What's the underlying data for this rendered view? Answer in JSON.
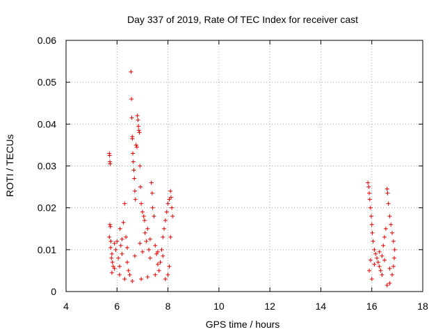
{
  "chart_data": {
    "type": "scatter",
    "title": "Day 337 of 2019, Rate Of TEC Index for receiver cast",
    "xlabel": "GPS time / hours",
    "ylabel": "ROTI / TECUs",
    "xlim": [
      4,
      18
    ],
    "ylim": [
      0,
      0.06
    ],
    "x_ticks": [
      4,
      6,
      8,
      10,
      12,
      14,
      16,
      18
    ],
    "y_ticks": [
      0,
      0.01,
      0.02,
      0.03,
      0.04,
      0.05,
      0.06
    ],
    "x_tick_labels": [
      "4",
      "6",
      "8",
      "10",
      "12",
      "14",
      "16",
      "18"
    ],
    "y_tick_labels": [
      "0",
      "0.01",
      "0.02",
      "0.03",
      "0.04",
      "0.05",
      "0.06"
    ],
    "grid": true,
    "marker": "plus",
    "color": "#e00000",
    "series": [
      {
        "name": "ROTI",
        "points": [
          [
            5.7,
            0.033
          ],
          [
            5.71,
            0.0325
          ],
          [
            5.72,
            0.031
          ],
          [
            5.73,
            0.0305
          ],
          [
            5.72,
            0.016
          ],
          [
            5.74,
            0.0155
          ],
          [
            5.7,
            0.013
          ],
          [
            5.76,
            0.012
          ],
          [
            5.75,
            0.0105
          ],
          [
            5.8,
            0.009
          ],
          [
            5.78,
            0.008
          ],
          [
            5.82,
            0.007
          ],
          [
            5.85,
            0.006
          ],
          [
            5.9,
            0.0055
          ],
          [
            5.95,
            0.01
          ],
          [
            6.0,
            0.012
          ],
          [
            6.05,
            0.008
          ],
          [
            6.1,
            0.006
          ],
          [
            6.12,
            0.015
          ],
          [
            6.15,
            0.011
          ],
          [
            6.2,
            0.009
          ],
          [
            6.25,
            0.0165
          ],
          [
            6.3,
            0.021
          ],
          [
            6.35,
            0.013
          ],
          [
            6.4,
            0.007
          ],
          [
            6.45,
            0.005
          ],
          [
            6.5,
            0.004
          ],
          [
            6.55,
            0.0525
          ],
          [
            6.57,
            0.046
          ],
          [
            6.58,
            0.0415
          ],
          [
            6.6,
            0.037
          ],
          [
            6.6,
            0.0365
          ],
          [
            6.62,
            0.033
          ],
          [
            6.64,
            0.031
          ],
          [
            6.66,
            0.029
          ],
          [
            6.68,
            0.027
          ],
          [
            6.7,
            0.024
          ],
          [
            6.72,
            0.022
          ],
          [
            6.75,
            0.035
          ],
          [
            6.78,
            0.0345
          ],
          [
            6.8,
            0.042
          ],
          [
            6.82,
            0.041
          ],
          [
            6.84,
            0.0395
          ],
          [
            6.86,
            0.0385
          ],
          [
            6.88,
            0.038
          ],
          [
            6.9,
            0.03
          ],
          [
            6.92,
            0.025
          ],
          [
            6.95,
            0.021
          ],
          [
            7.0,
            0.019
          ],
          [
            7.05,
            0.018
          ],
          [
            7.08,
            0.017
          ],
          [
            7.1,
            0.014
          ],
          [
            7.15,
            0.012
          ],
          [
            7.2,
            0.015
          ],
          [
            7.25,
            0.01
          ],
          [
            7.3,
            0.008
          ],
          [
            7.35,
            0.026
          ],
          [
            7.38,
            0.0235
          ],
          [
            7.4,
            0.02
          ],
          [
            7.45,
            0.018
          ],
          [
            7.5,
            0.011
          ],
          [
            7.55,
            0.009
          ],
          [
            7.6,
            0.0065
          ],
          [
            7.65,
            0.005
          ],
          [
            7.7,
            0.007
          ],
          [
            7.75,
            0.01
          ],
          [
            7.8,
            0.013
          ],
          [
            7.85,
            0.015
          ],
          [
            7.9,
            0.017
          ],
          [
            7.95,
            0.019
          ],
          [
            8.0,
            0.021
          ],
          [
            8.05,
            0.022
          ],
          [
            8.1,
            0.024
          ],
          [
            8.12,
            0.0225
          ],
          [
            8.15,
            0.02
          ],
          [
            8.18,
            0.018
          ],
          [
            8.1,
            0.013
          ],
          [
            8.05,
            0.006
          ],
          [
            8.0,
            0.004
          ],
          [
            7.9,
            0.003
          ],
          [
            6.3,
            0.003
          ],
          [
            6.6,
            0.0025
          ],
          [
            6.95,
            0.003
          ],
          [
            7.2,
            0.0035
          ],
          [
            7.5,
            0.004
          ],
          [
            6.1,
            0.004
          ],
          [
            5.8,
            0.0045
          ],
          [
            7.0,
            0.0095
          ],
          [
            6.7,
            0.0085
          ],
          [
            6.4,
            0.0105
          ],
          [
            6.2,
            0.0125
          ],
          [
            6.9,
            0.0115
          ],
          [
            7.3,
            0.0125
          ],
          [
            7.6,
            0.0095
          ],
          [
            7.8,
            0.0085
          ],
          [
            5.9,
            0.0115
          ],
          [
            15.85,
            0.026
          ],
          [
            15.88,
            0.025
          ],
          [
            15.9,
            0.0235
          ],
          [
            15.92,
            0.022
          ],
          [
            15.95,
            0.02
          ],
          [
            15.98,
            0.018
          ],
          [
            16.0,
            0.016
          ],
          [
            16.02,
            0.014
          ],
          [
            16.05,
            0.012
          ],
          [
            16.1,
            0.01
          ],
          [
            16.15,
            0.009
          ],
          [
            16.2,
            0.008
          ],
          [
            16.25,
            0.007
          ],
          [
            16.3,
            0.006
          ],
          [
            16.35,
            0.005
          ],
          [
            16.4,
            0.004
          ],
          [
            16.45,
            0.011
          ],
          [
            16.5,
            0.013
          ],
          [
            16.55,
            0.015
          ],
          [
            16.6,
            0.0245
          ],
          [
            16.62,
            0.0235
          ],
          [
            16.65,
            0.021
          ],
          [
            16.7,
            0.018
          ],
          [
            16.75,
            0.016
          ],
          [
            16.8,
            0.014
          ],
          [
            16.85,
            0.012
          ],
          [
            16.9,
            0.01
          ],
          [
            16.88,
            0.008
          ],
          [
            16.85,
            0.006
          ],
          [
            16.8,
            0.004
          ],
          [
            16.7,
            0.002
          ],
          [
            16.6,
            0.0015
          ],
          [
            16.0,
            0.003
          ],
          [
            15.9,
            0.005
          ],
          [
            16.3,
            0.0095
          ],
          [
            16.5,
            0.0075
          ],
          [
            16.1,
            0.0065
          ],
          [
            16.7,
            0.0055
          ],
          [
            16.4,
            0.0085
          ],
          [
            15.95,
            0.0075
          ]
        ]
      }
    ]
  }
}
